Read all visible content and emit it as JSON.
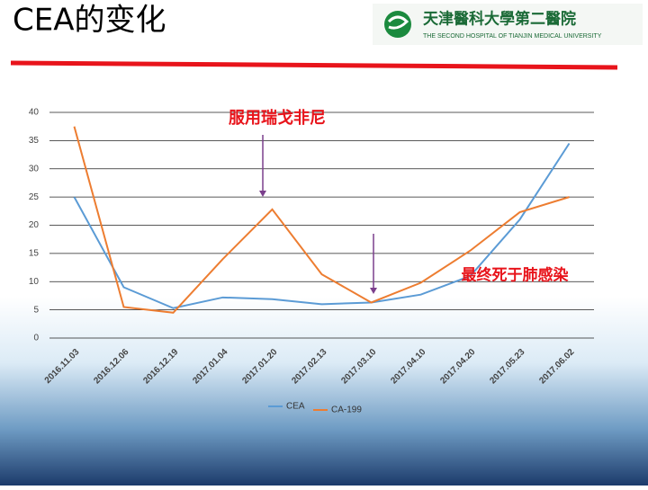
{
  "slide": {
    "title": "CEA的变化",
    "logo_name": "天津醫科大學第二醫院",
    "logo_subtitle": "THE SECOND HOSPITAL OF TIANJIN MEDICAL UNIVERSITY"
  },
  "chart_data": {
    "type": "line",
    "categories": [
      "2016.11.03",
      "2016.12.06",
      "2016.12.19",
      "2017.01.04",
      "2017.01.20",
      "2017.02.13",
      "2017.03.10",
      "2017.04.10",
      "2017.04.20",
      "2017.05.23",
      "2017.06.02"
    ],
    "series": [
      {
        "name": "CEA",
        "color": "#5b9bd5",
        "values": [
          25,
          9,
          5.3,
          7.2,
          6.9,
          6,
          6.3,
          7.7,
          11,
          21,
          34.5
        ]
      },
      {
        "name": "CA-199",
        "color": "#ed7d31",
        "values": [
          37.5,
          5.5,
          4.5,
          14,
          22.8,
          11.3,
          6.3,
          9.8,
          15.5,
          22.3,
          25
        ]
      }
    ],
    "ylim": [
      0,
      40
    ],
    "yticks": [
      0,
      5,
      10,
      15,
      20,
      25,
      30,
      35,
      40
    ],
    "grid": true,
    "annotations": [
      "服用瑞戈非尼",
      "最终死于肺感染"
    ]
  }
}
